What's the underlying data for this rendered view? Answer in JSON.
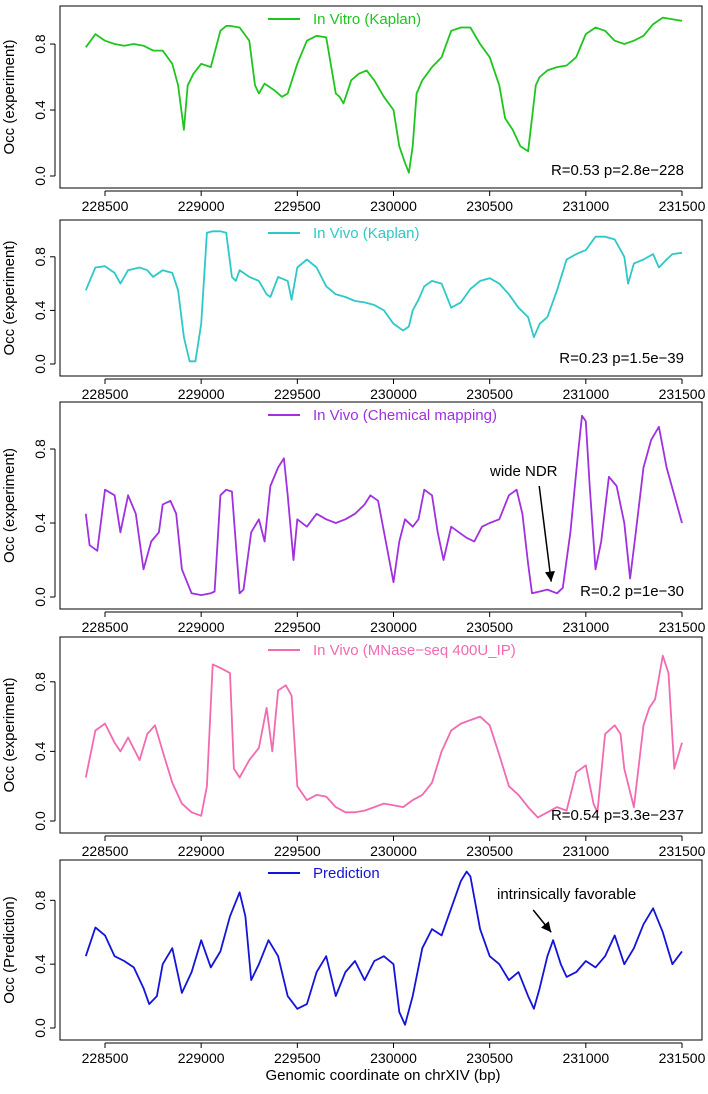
{
  "figure": {
    "xlabel": "Genomic coordinate on chrXIV (bp)"
  },
  "chart_data": [
    {
      "type": "line",
      "legend": "In Vitro (Kaplan)",
      "color": "#1fc51f",
      "ylabel": "Occ (experiment)",
      "stat": "R=0.53  p=2.8e−228",
      "xlim": [
        228400,
        231500
      ],
      "ylim": [
        0,
        0.97
      ],
      "xticks": [
        228500,
        229000,
        229500,
        230000,
        230500,
        231000,
        231500
      ],
      "yticks": [
        0.0,
        0.4,
        0.8
      ],
      "ytick_labels": [
        "0.0",
        "0.4",
        "0.8"
      ],
      "annotations": [],
      "x": [
        228400,
        228450,
        228500,
        228550,
        228600,
        228650,
        228700,
        228750,
        228800,
        228850,
        228880,
        228910,
        228930,
        228960,
        229000,
        229050,
        229100,
        229130,
        229150,
        229200,
        229250,
        229280,
        229300,
        229330,
        229380,
        229420,
        229450,
        229500,
        229550,
        229600,
        229650,
        229700,
        229720,
        229740,
        229780,
        229820,
        229860,
        229900,
        229950,
        230000,
        230030,
        230060,
        230080,
        230100,
        230120,
        230150,
        230200,
        230250,
        230300,
        230350,
        230400,
        230450,
        230500,
        230550,
        230580,
        230620,
        230660,
        230700,
        230720,
        230740,
        230760,
        230800,
        230850,
        230900,
        230950,
        231000,
        231050,
        231100,
        231150,
        231200,
        231250,
        231300,
        231350,
        231400,
        231450,
        231500
      ],
      "y": [
        0.78,
        0.86,
        0.82,
        0.8,
        0.79,
        0.8,
        0.79,
        0.76,
        0.76,
        0.68,
        0.55,
        0.28,
        0.55,
        0.62,
        0.68,
        0.66,
        0.88,
        0.91,
        0.91,
        0.9,
        0.82,
        0.55,
        0.5,
        0.56,
        0.52,
        0.48,
        0.5,
        0.68,
        0.82,
        0.85,
        0.84,
        0.5,
        0.48,
        0.44,
        0.58,
        0.62,
        0.64,
        0.58,
        0.48,
        0.4,
        0.18,
        0.08,
        0.02,
        0.18,
        0.5,
        0.58,
        0.66,
        0.72,
        0.88,
        0.9,
        0.9,
        0.8,
        0.72,
        0.55,
        0.35,
        0.28,
        0.18,
        0.15,
        0.35,
        0.55,
        0.6,
        0.64,
        0.66,
        0.67,
        0.72,
        0.86,
        0.9,
        0.88,
        0.82,
        0.8,
        0.82,
        0.85,
        0.92,
        0.96,
        0.95,
        0.94
      ]
    },
    {
      "type": "line",
      "legend": "In Vivo (Kaplan)",
      "color": "#2ec8c8",
      "ylabel": "Occ (experiment)",
      "stat": "R=0.23  p=1.5e−39",
      "xlim": [
        228400,
        231500
      ],
      "ylim": [
        0,
        1.0
      ],
      "xticks": [
        228500,
        229000,
        229500,
        230000,
        230500,
        231000,
        231500
      ],
      "yticks": [
        0.0,
        0.4,
        0.8
      ],
      "ytick_labels": [
        "0.0",
        "0.4",
        "0.8"
      ],
      "annotations": [],
      "x": [
        228400,
        228450,
        228500,
        228550,
        228580,
        228620,
        228680,
        228720,
        228750,
        228800,
        228850,
        228880,
        228910,
        228940,
        228970,
        229000,
        229030,
        229060,
        229100,
        229130,
        229160,
        229180,
        229200,
        229250,
        229300,
        229340,
        229360,
        229400,
        229450,
        229470,
        229500,
        229550,
        229600,
        229650,
        229700,
        229750,
        229800,
        229850,
        229900,
        229950,
        230000,
        230050,
        230080,
        230100,
        230130,
        230160,
        230200,
        230250,
        230300,
        230350,
        230400,
        230450,
        230500,
        230550,
        230600,
        230650,
        230700,
        230730,
        230760,
        230800,
        230850,
        230900,
        230950,
        231000,
        231050,
        231100,
        231150,
        231200,
        231220,
        231250,
        231300,
        231350,
        231380,
        231420,
        231450,
        231500
      ],
      "y": [
        0.55,
        0.72,
        0.73,
        0.68,
        0.6,
        0.7,
        0.72,
        0.7,
        0.65,
        0.7,
        0.68,
        0.55,
        0.2,
        0.02,
        0.02,
        0.3,
        0.98,
        0.99,
        0.99,
        0.98,
        0.65,
        0.62,
        0.7,
        0.65,
        0.62,
        0.52,
        0.5,
        0.65,
        0.62,
        0.48,
        0.72,
        0.78,
        0.72,
        0.58,
        0.52,
        0.5,
        0.47,
        0.46,
        0.44,
        0.4,
        0.3,
        0.25,
        0.28,
        0.4,
        0.48,
        0.58,
        0.62,
        0.6,
        0.42,
        0.46,
        0.56,
        0.62,
        0.64,
        0.6,
        0.52,
        0.42,
        0.35,
        0.2,
        0.3,
        0.35,
        0.55,
        0.78,
        0.82,
        0.85,
        0.95,
        0.95,
        0.93,
        0.8,
        0.6,
        0.75,
        0.78,
        0.82,
        0.72,
        0.78,
        0.82,
        0.83
      ]
    },
    {
      "type": "line",
      "legend": "In Vivo (Chemical mapping)",
      "color": "#a030e0",
      "ylabel": "Occ (experiment)",
      "stat": "R=0.2  p=1e−30",
      "xlim": [
        228400,
        231500
      ],
      "ylim": [
        0,
        1.0
      ],
      "xticks": [
        228500,
        229000,
        229500,
        230000,
        230500,
        231000,
        231500
      ],
      "yticks": [
        0.0,
        0.4,
        0.8
      ],
      "ytick_labels": [
        "0.0",
        "0.4",
        "0.8"
      ],
      "annotations": [
        {
          "text": "wide NDR",
          "target_x": 230820,
          "target_y": 0.04
        }
      ],
      "x": [
        228400,
        228420,
        228460,
        228500,
        228550,
        228580,
        228620,
        228660,
        228700,
        228740,
        228780,
        228800,
        228840,
        228870,
        228900,
        228950,
        229000,
        229050,
        229070,
        229100,
        229130,
        229160,
        229200,
        229220,
        229260,
        229300,
        229330,
        229360,
        229400,
        229430,
        229450,
        229480,
        229500,
        229550,
        229600,
        229650,
        229700,
        229750,
        229800,
        229850,
        229880,
        229920,
        229960,
        230000,
        230030,
        230060,
        230100,
        230130,
        230160,
        230200,
        230230,
        230260,
        230300,
        230340,
        230380,
        230420,
        230460,
        230500,
        230550,
        230600,
        230640,
        230670,
        230700,
        230720,
        230760,
        230800,
        230850,
        230880,
        230920,
        230960,
        230980,
        231000,
        231020,
        231050,
        231080,
        231120,
        231160,
        231200,
        231230,
        231260,
        231300,
        231340,
        231380,
        231420,
        231460,
        231500
      ],
      "y": [
        0.45,
        0.28,
        0.25,
        0.58,
        0.55,
        0.35,
        0.55,
        0.45,
        0.15,
        0.3,
        0.35,
        0.5,
        0.52,
        0.45,
        0.15,
        0.02,
        0.01,
        0.02,
        0.03,
        0.55,
        0.58,
        0.57,
        0.02,
        0.04,
        0.35,
        0.42,
        0.3,
        0.6,
        0.7,
        0.75,
        0.55,
        0.2,
        0.42,
        0.38,
        0.45,
        0.42,
        0.4,
        0.42,
        0.45,
        0.5,
        0.55,
        0.52,
        0.3,
        0.08,
        0.3,
        0.42,
        0.38,
        0.42,
        0.58,
        0.55,
        0.35,
        0.2,
        0.38,
        0.35,
        0.32,
        0.3,
        0.38,
        0.4,
        0.42,
        0.55,
        0.58,
        0.45,
        0.18,
        0.02,
        0.03,
        0.04,
        0.02,
        0.05,
        0.35,
        0.78,
        0.98,
        0.95,
        0.6,
        0.15,
        0.3,
        0.65,
        0.6,
        0.4,
        0.1,
        0.35,
        0.7,
        0.85,
        0.92,
        0.7,
        0.55,
        0.4
      ]
    },
    {
      "type": "line",
      "legend": "In Vivo (MNase−seq 400U_IP)",
      "color": "#f26ab0",
      "ylabel": "Occ (experiment)",
      "stat": "R=0.54  p=3.3e−237",
      "xlim": [
        228400,
        231500
      ],
      "ylim": [
        0,
        1.0
      ],
      "xticks": [
        228500,
        229000,
        229500,
        230000,
        230500,
        231000,
        231500
      ],
      "yticks": [
        0.0,
        0.4,
        0.8
      ],
      "ytick_labels": [
        "0.0",
        "0.4",
        "0.8"
      ],
      "annotations": [],
      "x": [
        228400,
        228450,
        228500,
        228550,
        228580,
        228620,
        228680,
        228720,
        228760,
        228800,
        228850,
        228900,
        228950,
        229000,
        229030,
        229060,
        229100,
        229150,
        229170,
        229200,
        229250,
        229300,
        229340,
        229370,
        229400,
        229440,
        229470,
        229500,
        229550,
        229600,
        229650,
        229700,
        229750,
        229800,
        229850,
        229900,
        229950,
        230000,
        230050,
        230100,
        230150,
        230200,
        230250,
        230300,
        230350,
        230400,
        230450,
        230500,
        230550,
        230600,
        230650,
        230700,
        230750,
        230800,
        230850,
        230900,
        230950,
        231000,
        231040,
        231060,
        231100,
        231150,
        231180,
        231200,
        231250,
        231300,
        231330,
        231360,
        231400,
        231430,
        231460,
        231500
      ],
      "y": [
        0.25,
        0.52,
        0.56,
        0.45,
        0.4,
        0.48,
        0.35,
        0.5,
        0.55,
        0.4,
        0.22,
        0.1,
        0.05,
        0.03,
        0.2,
        0.9,
        0.88,
        0.85,
        0.3,
        0.25,
        0.35,
        0.42,
        0.65,
        0.4,
        0.75,
        0.78,
        0.72,
        0.2,
        0.12,
        0.15,
        0.14,
        0.08,
        0.05,
        0.05,
        0.06,
        0.08,
        0.1,
        0.09,
        0.08,
        0.12,
        0.15,
        0.22,
        0.4,
        0.52,
        0.56,
        0.58,
        0.6,
        0.55,
        0.38,
        0.2,
        0.15,
        0.08,
        0.02,
        0.05,
        0.08,
        0.06,
        0.28,
        0.32,
        0.1,
        0.05,
        0.5,
        0.55,
        0.5,
        0.3,
        0.08,
        0.55,
        0.65,
        0.7,
        0.95,
        0.85,
        0.3,
        0.45
      ]
    },
    {
      "type": "line",
      "legend": "Prediction",
      "color": "#1414d8",
      "ylabel": "Occ (Prediction)",
      "stat": "",
      "xlim": [
        228400,
        231500
      ],
      "ylim": [
        0,
        0.99
      ],
      "xticks": [
        228500,
        229000,
        229500,
        230000,
        230500,
        231000,
        231500
      ],
      "yticks": [
        0.0,
        0.4,
        0.8
      ],
      "ytick_labels": [
        "0.0",
        "0.4",
        "0.8"
      ],
      "annotations": [
        {
          "text": "intrinsically favorable",
          "target_x": 230820,
          "target_y": 0.55
        }
      ],
      "x": [
        228400,
        228450,
        228500,
        228550,
        228600,
        228650,
        228700,
        228730,
        228770,
        228800,
        228850,
        228900,
        228950,
        229000,
        229050,
        229100,
        229150,
        229200,
        229230,
        229260,
        229300,
        229350,
        229400,
        229450,
        229500,
        229550,
        229600,
        229650,
        229700,
        229750,
        229800,
        229850,
        229900,
        229950,
        230000,
        230030,
        230060,
        230100,
        230150,
        230200,
        230250,
        230300,
        230350,
        230380,
        230400,
        230450,
        230500,
        230550,
        230600,
        230650,
        230700,
        230730,
        230760,
        230800,
        230830,
        230870,
        230900,
        230950,
        231000,
        231050,
        231100,
        231150,
        231200,
        231250,
        231300,
        231350,
        231400,
        231450,
        231500
      ],
      "y": [
        0.45,
        0.63,
        0.58,
        0.45,
        0.42,
        0.38,
        0.25,
        0.15,
        0.2,
        0.4,
        0.5,
        0.22,
        0.35,
        0.55,
        0.38,
        0.48,
        0.7,
        0.85,
        0.7,
        0.3,
        0.4,
        0.55,
        0.45,
        0.2,
        0.12,
        0.15,
        0.35,
        0.45,
        0.2,
        0.35,
        0.42,
        0.3,
        0.42,
        0.45,
        0.4,
        0.1,
        0.02,
        0.2,
        0.5,
        0.62,
        0.58,
        0.75,
        0.92,
        0.98,
        0.95,
        0.62,
        0.45,
        0.4,
        0.3,
        0.35,
        0.2,
        0.12,
        0.25,
        0.45,
        0.55,
        0.4,
        0.32,
        0.35,
        0.42,
        0.38,
        0.45,
        0.58,
        0.4,
        0.5,
        0.65,
        0.75,
        0.6,
        0.4,
        0.48
      ]
    }
  ]
}
